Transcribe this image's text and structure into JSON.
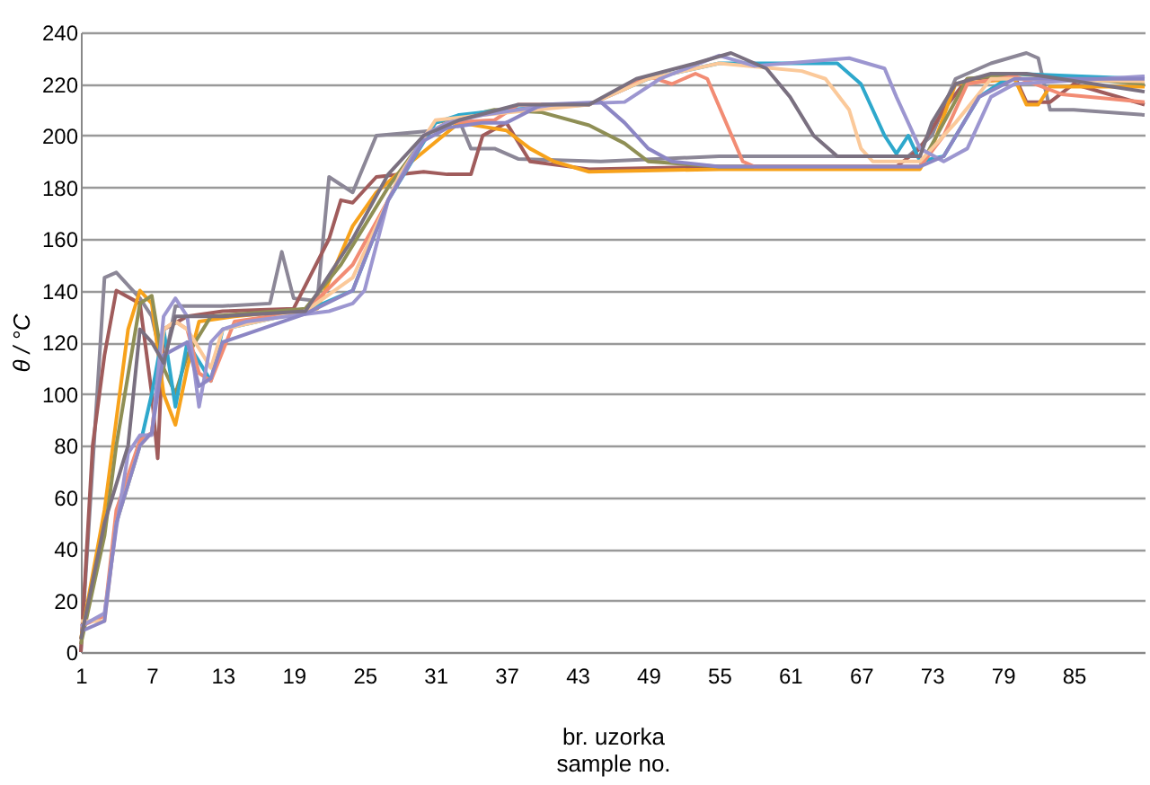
{
  "chart_data": {
    "type": "line",
    "xlabel": "br. uzorka\nsample no.",
    "ylabel": "θ / °C",
    "xlim": [
      1,
      91
    ],
    "xticks": [
      1,
      7,
      13,
      19,
      25,
      31,
      37,
      43,
      49,
      55,
      61,
      67,
      73,
      79,
      85
    ],
    "ylim": [
      0,
      240
    ],
    "yticks": [
      0,
      20,
      40,
      60,
      80,
      100,
      120,
      140,
      160,
      180,
      200,
      220,
      240
    ],
    "grid": "y",
    "legend": false,
    "marker": "none",
    "line_style": "solid",
    "series": [
      {
        "color": "#8c8797",
        "x": [
          1,
          3,
          4,
          6,
          7,
          8,
          9,
          13,
          17,
          18,
          19,
          21,
          22,
          24,
          26,
          31,
          33,
          34,
          36,
          38,
          45,
          55,
          71,
          73,
          75,
          78,
          81,
          82,
          83,
          85,
          91
        ],
        "values": [
          0,
          145,
          147,
          137,
          130,
          110,
          134,
          134,
          135,
          155,
          137,
          136,
          184,
          178,
          200,
          202,
          206,
          195,
          195,
          191,
          190,
          192,
          192,
          200,
          222,
          228,
          232,
          230,
          210,
          210,
          208
        ]
      },
      {
        "color": "#a05c5c",
        "x": [
          1,
          2,
          3,
          4,
          6,
          7,
          7.5,
          8,
          10,
          13,
          19,
          22,
          23,
          24,
          26,
          30,
          32,
          34,
          35,
          37,
          39,
          44,
          55,
          70,
          72,
          74,
          76,
          80,
          81,
          83,
          85,
          91
        ],
        "values": [
          0,
          80,
          115,
          140,
          135,
          100,
          75,
          125,
          130,
          132,
          133,
          160,
          175,
          174,
          184,
          186,
          185,
          185,
          200,
          205,
          190,
          187,
          188,
          188,
          195,
          210,
          222,
          223,
          213,
          213,
          220,
          212
        ]
      },
      {
        "color": "#f7a21b",
        "x": [
          1,
          3,
          5,
          6,
          7,
          8,
          9,
          10,
          11,
          14,
          21,
          24,
          26,
          29,
          33,
          37,
          39,
          41,
          44,
          55,
          72,
          73,
          75,
          80,
          81,
          82,
          83,
          91
        ],
        "values": [
          5,
          55,
          125,
          140,
          135,
          100,
          88,
          110,
          128,
          130,
          133,
          165,
          178,
          190,
          205,
          202,
          195,
          190,
          186,
          187,
          187,
          195,
          220,
          222,
          212,
          212,
          219,
          219
        ]
      },
      {
        "color": "#8f8f55",
        "x": [
          1,
          3,
          4,
          6,
          7,
          8,
          9,
          10,
          12,
          20,
          23,
          27,
          31,
          33,
          36,
          40,
          44,
          47,
          49,
          55,
          72,
          74,
          76,
          80,
          91
        ],
        "values": [
          3,
          45,
          80,
          135,
          138,
          110,
          100,
          115,
          130,
          133,
          150,
          180,
          205,
          207,
          210,
          209,
          204,
          197,
          190,
          188,
          188,
          205,
          222,
          224,
          220
        ]
      },
      {
        "color": "#2ea8cc",
        "x": [
          4,
          6,
          7,
          8,
          9,
          10,
          12,
          13,
          20,
          24,
          27,
          31,
          33,
          37,
          44,
          49,
          55,
          65,
          67,
          69,
          70,
          71,
          72,
          74,
          77,
          80,
          91
        ],
        "values": [
          50,
          80,
          100,
          125,
          95,
          120,
          105,
          125,
          132,
          140,
          175,
          205,
          208,
          210,
          212,
          222,
          228,
          228,
          220,
          200,
          193,
          200,
          190,
          192,
          215,
          224,
          222
        ]
      },
      {
        "color": "#f28c74",
        "x": [
          1,
          3,
          4,
          6,
          7,
          8,
          9,
          10,
          11,
          12,
          14,
          20,
          24,
          27,
          30,
          32,
          36,
          38,
          44,
          47,
          49,
          51,
          53,
          54,
          57,
          58,
          72,
          74,
          76,
          80,
          84,
          91
        ],
        "values": [
          10,
          14,
          55,
          82,
          85,
          125,
          128,
          125,
          108,
          105,
          128,
          132,
          150,
          175,
          200,
          205,
          206,
          212,
          212,
          218,
          223,
          220,
          224,
          222,
          190,
          188,
          188,
          200,
          220,
          223,
          216,
          213
        ]
      },
      {
        "color": "#fbc99a",
        "x": [
          1,
          3,
          4,
          6,
          7,
          8,
          9,
          10,
          12,
          13,
          20,
          24,
          28,
          31,
          35,
          44,
          49,
          55,
          62,
          64,
          66,
          67,
          68,
          72,
          75,
          78,
          81,
          91
        ],
        "values": [
          12,
          12,
          50,
          80,
          85,
          125,
          128,
          125,
          110,
          125,
          132,
          145,
          185,
          206,
          208,
          212,
          222,
          228,
          225,
          222,
          210,
          195,
          190,
          190,
          205,
          222,
          222,
          221
        ]
      },
      {
        "color": "#9c96d0",
        "x": [
          1,
          3,
          4,
          5,
          6,
          7,
          8,
          9,
          10,
          11,
          12,
          13,
          15,
          22,
          24,
          25,
          27,
          30,
          32,
          35,
          38,
          41,
          47,
          50,
          55,
          58,
          66,
          69,
          70,
          72,
          74,
          76,
          78,
          80,
          91
        ],
        "values": [
          10,
          15,
          48,
          77,
          84,
          84,
          130,
          137,
          130,
          95,
          120,
          125,
          128,
          132,
          135,
          140,
          175,
          200,
          205,
          208,
          210,
          212,
          213,
          222,
          231,
          227,
          230,
          226,
          215,
          195,
          190,
          195,
          215,
          220,
          223
        ]
      },
      {
        "color": "#8c86c4",
        "x": [
          1,
          3,
          4,
          6,
          7,
          8,
          10,
          11,
          12,
          13,
          20,
          24,
          27,
          30,
          32,
          35,
          37,
          40,
          45,
          47,
          49,
          51,
          55,
          72,
          74,
          77,
          80,
          91
        ],
        "values": [
          8,
          12,
          50,
          80,
          85,
          115,
          120,
          103,
          106,
          120,
          131,
          140,
          175,
          198,
          203,
          205,
          205,
          212,
          213,
          205,
          195,
          190,
          188,
          188,
          192,
          215,
          222,
          222
        ]
      },
      {
        "color": "#7a7080",
        "x": [
          1,
          3,
          5,
          6,
          7,
          8,
          9,
          13,
          20,
          24,
          27,
          30,
          33,
          38,
          44,
          48,
          53,
          56,
          59,
          61,
          63,
          65,
          72,
          73,
          75,
          78,
          81,
          91
        ],
        "values": [
          5,
          50,
          80,
          125,
          120,
          112,
          130,
          130,
          132,
          160,
          185,
          200,
          206,
          212,
          212,
          222,
          228,
          232,
          226,
          215,
          200,
          192,
          192,
          205,
          220,
          224,
          224,
          217
        ]
      }
    ]
  }
}
